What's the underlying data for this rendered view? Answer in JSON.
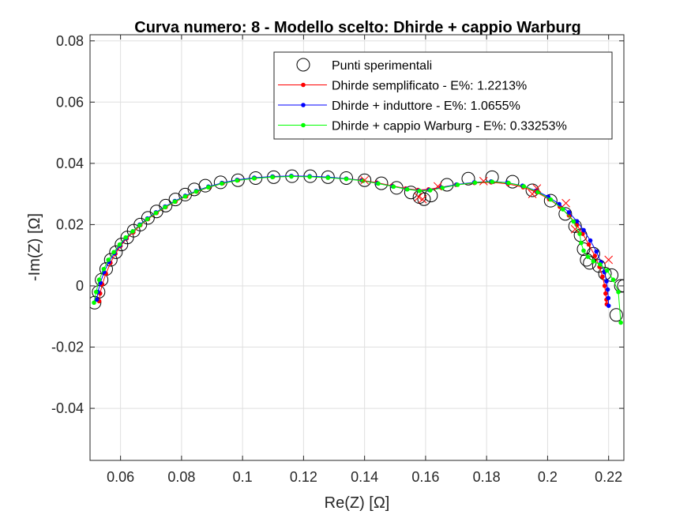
{
  "chart_data": {
    "type": "scatter",
    "title": "Curva numero: 8 - Modello scelto: Dhirde + cappio Warburg",
    "xlabel": "Re(Z) [Ω]",
    "ylabel": "-Im(Z) [Ω]",
    "xlim": [
      0.05,
      0.225
    ],
    "ylim": [
      -0.057,
      0.082
    ],
    "xticks": [
      0.06,
      0.08,
      0.1,
      0.12,
      0.14,
      0.16,
      0.18,
      0.2,
      0.22
    ],
    "xtick_labels": [
      "0.06",
      "0.08",
      "0.1",
      "0.12",
      "0.14",
      "0.16",
      "0.18",
      "0.2",
      "0.22"
    ],
    "yticks": [
      -0.04,
      -0.02,
      0,
      0.02,
      0.04,
      0.06,
      0.08
    ],
    "ytick_labels": [
      "-0.04",
      "-0.02",
      "0",
      "0.02",
      "0.04",
      "0.06",
      "0.08"
    ],
    "grid": true,
    "legend_position": "top-right",
    "series": [
      {
        "name": "Punti sperimentali",
        "style": "circle",
        "color": "#000000",
        "x": [
          0.0515,
          0.0528,
          0.0538,
          0.0553,
          0.0568,
          0.0585,
          0.0603,
          0.0622,
          0.0643,
          0.0665,
          0.069,
          0.0718,
          0.0748,
          0.078,
          0.0812,
          0.0842,
          0.0878,
          0.0928,
          0.0985,
          0.1043,
          0.1102,
          0.1162,
          0.1222,
          0.128,
          0.134,
          0.14,
          0.1455,
          0.1505,
          0.1552,
          0.158,
          0.1595,
          0.1618,
          0.167,
          0.174,
          0.1818,
          0.1885,
          0.195,
          0.201,
          0.2058,
          0.209,
          0.2108,
          0.2118,
          0.2128,
          0.2138,
          0.215,
          0.2168,
          0.2188,
          0.221,
          0.2225,
          0.224,
          0.225
        ],
        "y": [
          -0.0055,
          -0.002,
          0.002,
          0.0055,
          0.0085,
          0.011,
          0.0135,
          0.0158,
          0.018,
          0.02,
          0.0222,
          0.0243,
          0.0262,
          0.0282,
          0.0298,
          0.0315,
          0.0327,
          0.0338,
          0.0345,
          0.0352,
          0.0355,
          0.0358,
          0.0358,
          0.0355,
          0.0352,
          0.0345,
          0.0335,
          0.032,
          0.0305,
          0.029,
          0.0283,
          0.0295,
          0.033,
          0.035,
          0.0355,
          0.034,
          0.0312,
          0.0278,
          0.0235,
          0.0195,
          0.0165,
          0.012,
          0.0085,
          0.0075,
          0.0105,
          0.0065,
          0.004,
          0.0035,
          -0.0095,
          0.0,
          0.0
        ]
      },
      {
        "name": "Dhirde semplificato - E%: 1.2213%",
        "style": "line-dot",
        "color": "#ff0000",
        "x": [
          0.053,
          0.0533,
          0.054,
          0.0552,
          0.0567,
          0.0583,
          0.06,
          0.062,
          0.0642,
          0.0665,
          0.069,
          0.0718,
          0.0748,
          0.078,
          0.0815,
          0.085,
          0.089,
          0.0935,
          0.0985,
          0.104,
          0.11,
          0.116,
          0.122,
          0.128,
          0.134,
          0.139,
          0.144,
          0.149,
          0.1535,
          0.1575,
          0.161,
          0.165,
          0.17,
          0.176,
          0.1815,
          0.187,
          0.192,
          0.1965,
          0.2005,
          0.204,
          0.207,
          0.2095,
          0.2115,
          0.2135,
          0.2155,
          0.217,
          0.218,
          0.2187,
          0.219,
          0.2193,
          0.2194
        ],
        "y": [
          -0.005,
          -0.0025,
          0.0005,
          0.004,
          0.0075,
          0.0105,
          0.013,
          0.0155,
          0.0175,
          0.0198,
          0.0218,
          0.0238,
          0.0257,
          0.0275,
          0.0292,
          0.0308,
          0.0322,
          0.0335,
          0.0345,
          0.0352,
          0.0356,
          0.0358,
          0.0357,
          0.0354,
          0.035,
          0.0345,
          0.0337,
          0.0327,
          0.0318,
          0.0313,
          0.0315,
          0.0322,
          0.033,
          0.0336,
          0.0338,
          0.0333,
          0.0322,
          0.0305,
          0.0283,
          0.0258,
          0.023,
          0.02,
          0.017,
          0.0135,
          0.0098,
          0.0062,
          0.003,
          0.0,
          -0.0025,
          -0.0045,
          -0.006
        ]
      },
      {
        "name": "Dhirde + induttore - E%: 1.0655%",
        "style": "line-dot",
        "color": "#0000ff",
        "x": [
          0.0522,
          0.0526,
          0.0534,
          0.0546,
          0.0562,
          0.058,
          0.0598,
          0.0618,
          0.064,
          0.0663,
          0.0688,
          0.0716,
          0.0746,
          0.0778,
          0.0812,
          0.0848,
          0.0888,
          0.0932,
          0.0982,
          0.1038,
          0.1098,
          0.116,
          0.122,
          0.128,
          0.134,
          0.1392,
          0.1442,
          0.1492,
          0.1538,
          0.1578,
          0.1612,
          0.1652,
          0.1702,
          0.176,
          0.1815,
          0.1868,
          0.1918,
          0.1962,
          0.2002,
          0.2038,
          0.207,
          0.2096,
          0.2118,
          0.214,
          0.216,
          0.2175,
          0.2186,
          0.2193,
          0.2197,
          0.2199,
          0.22
        ],
        "y": [
          -0.0045,
          -0.002,
          0.001,
          0.0045,
          0.0078,
          0.0107,
          0.0132,
          0.0156,
          0.0178,
          0.02,
          0.022,
          0.024,
          0.0259,
          0.0277,
          0.0294,
          0.031,
          0.0324,
          0.0336,
          0.0346,
          0.0353,
          0.0357,
          0.0359,
          0.0358,
          0.0355,
          0.035,
          0.0344,
          0.0335,
          0.0325,
          0.0316,
          0.0311,
          0.0313,
          0.0321,
          0.0331,
          0.0338,
          0.0341,
          0.0337,
          0.0327,
          0.0311,
          0.0291,
          0.0267,
          0.024,
          0.0211,
          0.0182,
          0.0148,
          0.0112,
          0.0077,
          0.0045,
          0.0015,
          -0.0012,
          -0.004,
          -0.0065
        ]
      },
      {
        "name": "Dhirde + cappio Warburg - E%: 0.33253%",
        "style": "line-dot",
        "color": "#00ff00",
        "x": [
          0.0513,
          0.052,
          0.053,
          0.0545,
          0.056,
          0.0578,
          0.0597,
          0.0617,
          0.064,
          0.0663,
          0.0688,
          0.0716,
          0.0746,
          0.0778,
          0.0812,
          0.0848,
          0.0888,
          0.0932,
          0.0982,
          0.1038,
          0.1098,
          0.116,
          0.122,
          0.128,
          0.134,
          0.1395,
          0.1445,
          0.1495,
          0.154,
          0.158,
          0.1615,
          0.1655,
          0.1705,
          0.1762,
          0.1818,
          0.1872,
          0.1922,
          0.1968,
          0.201,
          0.205,
          0.2085,
          0.2105,
          0.211,
          0.2118,
          0.2132,
          0.215,
          0.2172,
          0.2195,
          0.2215,
          0.2232,
          0.224
        ],
        "y": [
          -0.0055,
          -0.002,
          0.002,
          0.0055,
          0.0085,
          0.011,
          0.0135,
          0.0158,
          0.0178,
          0.0198,
          0.0218,
          0.0238,
          0.0257,
          0.0275,
          0.0292,
          0.0308,
          0.0322,
          0.0334,
          0.0344,
          0.0351,
          0.0355,
          0.0357,
          0.0356,
          0.0353,
          0.0349,
          0.0343,
          0.0334,
          0.0324,
          0.0315,
          0.031,
          0.0312,
          0.032,
          0.033,
          0.0337,
          0.034,
          0.0336,
          0.0325,
          0.0306,
          0.0282,
          0.025,
          0.021,
          0.017,
          0.014,
          0.0115,
          0.0095,
          0.008,
          0.007,
          0.005,
          0.002,
          -0.002,
          -0.012
        ]
      }
    ],
    "rejected_points": {
      "style": "x",
      "color": "#ff0000",
      "x": [
        0.14,
        0.1577,
        0.159,
        0.164,
        0.179,
        0.195,
        0.1965,
        0.206,
        0.209,
        0.22
      ],
      "y": [
        0.0345,
        0.029,
        0.0283,
        0.0325,
        0.0342,
        0.03,
        0.0318,
        0.027,
        0.0185,
        0.0085
      ]
    }
  }
}
